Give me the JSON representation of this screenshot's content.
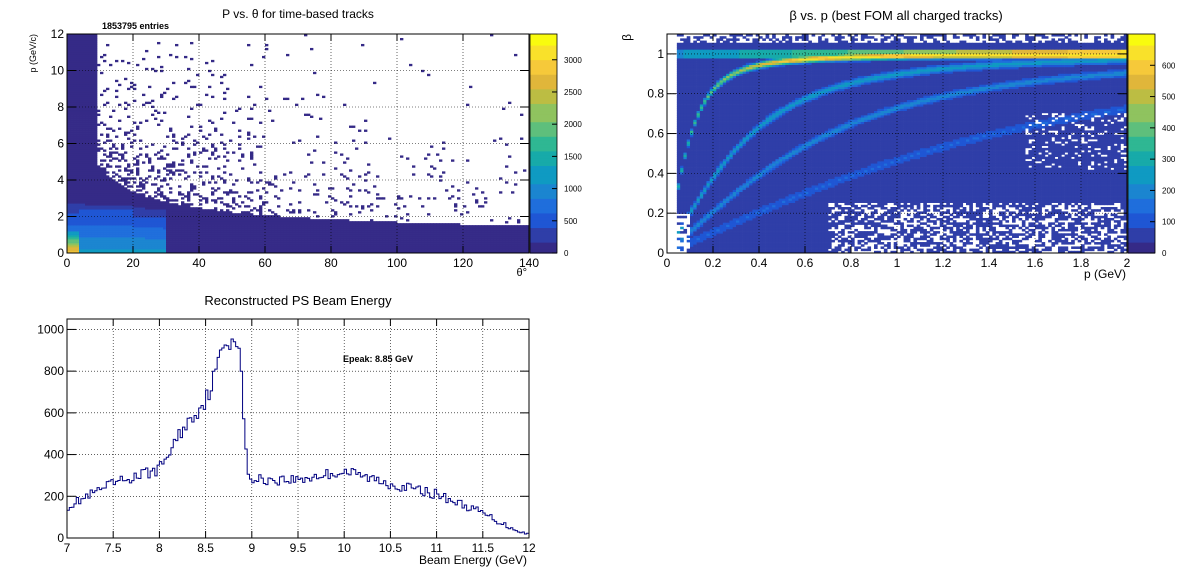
{
  "palette_colors": [
    "#352a87",
    "#2f3ea8",
    "#1f56d4",
    "#1f6edc",
    "#1b85d0",
    "#0f9ac2",
    "#17aaa9",
    "#2fb793",
    "#5ebf7c",
    "#8fc35f",
    "#bcbd43",
    "#e0b63a",
    "#f6c93a",
    "#f9e12a",
    "#f9fb0e"
  ],
  "line_color": "#000080",
  "chart_data": [
    {
      "type": "heatmap",
      "title": "P vs. θ for time-based tracks",
      "stats_label": "1853795 entries",
      "xlabel": "θ°",
      "ylabel": "p (GeV/c)",
      "xlim": [
        0,
        140
      ],
      "ylim": [
        0,
        12
      ],
      "zlim": [
        0,
        3400
      ],
      "x_ticks": [
        "0",
        "20",
        "40",
        "60",
        "80",
        "100",
        "120",
        "140"
      ],
      "y_ticks": [
        "0",
        "2",
        "4",
        "6",
        "8",
        "10",
        "12"
      ],
      "z_ticks": [
        "0",
        "500",
        "1000",
        "1500",
        "2000",
        "2500",
        "3000"
      ],
      "grid": true
    },
    {
      "type": "heatmap",
      "title": "β vs. p (best FOM all charged tracks)",
      "xlabel": "p (GeV)",
      "ylabel": "β",
      "xlim": [
        0,
        2
      ],
      "ylim": [
        0,
        1.1
      ],
      "zlim": [
        0,
        700
      ],
      "x_ticks": [
        "0",
        "0.2",
        "0.4",
        "0.6",
        "0.8",
        "1",
        "1.2",
        "1.4",
        "1.6",
        "1.8",
        "2"
      ],
      "y_ticks": [
        "0",
        "0.2",
        "0.4",
        "0.6",
        "0.8",
        "1"
      ],
      "z_ticks": [
        "0",
        "100",
        "200",
        "300",
        "400",
        "500",
        "600"
      ],
      "grid": true
    },
    {
      "type": "line",
      "title": "Reconstructed PS Beam Energy",
      "xlabel": "Beam Energy (GeV)",
      "ylabel": "",
      "annotation": "Epeak: 8.85 GeV",
      "xlim": [
        7,
        12
      ],
      "ylim": [
        0,
        1050
      ],
      "x_ticks": [
        "7",
        "7.5",
        "8",
        "8.5",
        "9",
        "9.5",
        "10",
        "10.5",
        "11",
        "11.5",
        "12"
      ],
      "y_ticks": [
        "0",
        "200",
        "400",
        "600",
        "800",
        "1000"
      ],
      "grid": true,
      "x": [
        7.0,
        7.5,
        8.0,
        8.25,
        8.5,
        8.6,
        8.7,
        8.8,
        8.85,
        8.9,
        8.95,
        9.0,
        9.5,
        10.0,
        10.5,
        11.0,
        11.5,
        11.75,
        12.0
      ],
      "values": [
        150,
        260,
        330,
        520,
        660,
        780,
        930,
        960,
        965,
        700,
        300,
        280,
        280,
        320,
        260,
        210,
        120,
        60,
        15
      ]
    }
  ]
}
